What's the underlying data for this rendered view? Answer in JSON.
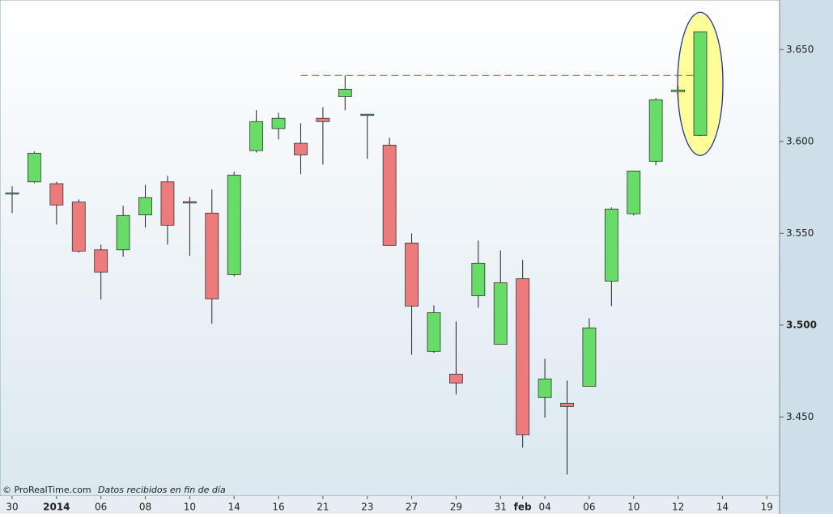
{
  "chart_data": {
    "type": "candlestick",
    "categories": [
      "30",
      null,
      "2014",
      null,
      "06",
      null,
      "08",
      null,
      "10",
      null,
      "14",
      null,
      "16",
      null,
      "21",
      null,
      "23",
      null,
      "27",
      null,
      "29",
      null,
      "31",
      "feb",
      "04",
      null,
      "06",
      null,
      "10",
      null,
      "12",
      null,
      "14",
      null,
      "19"
    ],
    "open": [
      3.572,
      3.578,
      3.577,
      3.567,
      3.541,
      3.541,
      3.56,
      3.578,
      3.5672,
      3.561,
      3.5275,
      3.595,
      3.607,
      3.599,
      3.6126,
      3.6244,
      3.6145,
      3.598,
      3.5447,
      3.4857,
      3.4733,
      3.516,
      3.4896,
      3.5253,
      3.4606,
      3.4575,
      3.4667,
      3.524,
      3.5606,
      3.5892,
      3.6271,
      3.6033,
      null,
      null,
      null
    ],
    "high": [
      3.5756,
      3.5945,
      3.578,
      3.5685,
      3.5438,
      3.565,
      3.5764,
      3.5813,
      3.5698,
      3.5738,
      3.5835,
      3.617,
      3.6156,
      3.6099,
      3.6187,
      3.6359,
      3.615,
      3.602,
      3.55,
      3.5108,
      3.502,
      3.546,
      3.5407,
      3.5355,
      3.4817,
      3.4698,
      3.5037,
      3.5641,
      3.5839,
      3.6236,
      3.6302,
      3.6597,
      null,
      null,
      null
    ],
    "low": [
      3.561,
      3.5773,
      3.5548,
      3.5394,
      3.5139,
      3.5372,
      3.5531,
      3.5438,
      3.5377,
      3.5007,
      3.5266,
      3.594,
      3.6011,
      3.5822,
      3.5874,
      3.617,
      3.5905,
      3.5434,
      3.4839,
      3.4848,
      3.4623,
      3.5095,
      3.4896,
      3.4333,
      3.4496,
      3.4187,
      3.4667,
      3.5104,
      3.5597,
      3.587,
      3.6222,
      3.6029,
      null,
      null,
      null
    ],
    "close": [
      3.572,
      3.5936,
      3.5654,
      3.5403,
      3.5289,
      3.5597,
      3.5694,
      3.5544,
      3.5665,
      3.5143,
      3.5817,
      3.6108,
      3.6126,
      3.5927,
      3.6108,
      3.6284,
      3.6148,
      3.5434,
      3.5104,
      3.5068,
      3.4685,
      3.5337,
      3.5231,
      3.4403,
      3.4707,
      3.4557,
      3.4985,
      3.5632,
      3.5839,
      3.6227,
      3.628,
      3.6597,
      null,
      null,
      null
    ],
    "up_color": "#66dd66",
    "down_color": "#ee7b7b",
    "resistance": {
      "value": 3.6359,
      "color": "#c0392b"
    },
    "ylim": [
      3.407,
      3.677
    ],
    "yticks": [
      {
        "value": 3.45,
        "label": "3.450"
      },
      {
        "value": 3.5,
        "label": "3.500"
      },
      {
        "value": 3.55,
        "label": "3.550"
      },
      {
        "value": 3.6,
        "label": "3.600"
      },
      {
        "value": 3.65,
        "label": "3.650"
      }
    ],
    "source": "© ProRealTime.com",
    "note": "Datos recibidos en fin de día"
  }
}
